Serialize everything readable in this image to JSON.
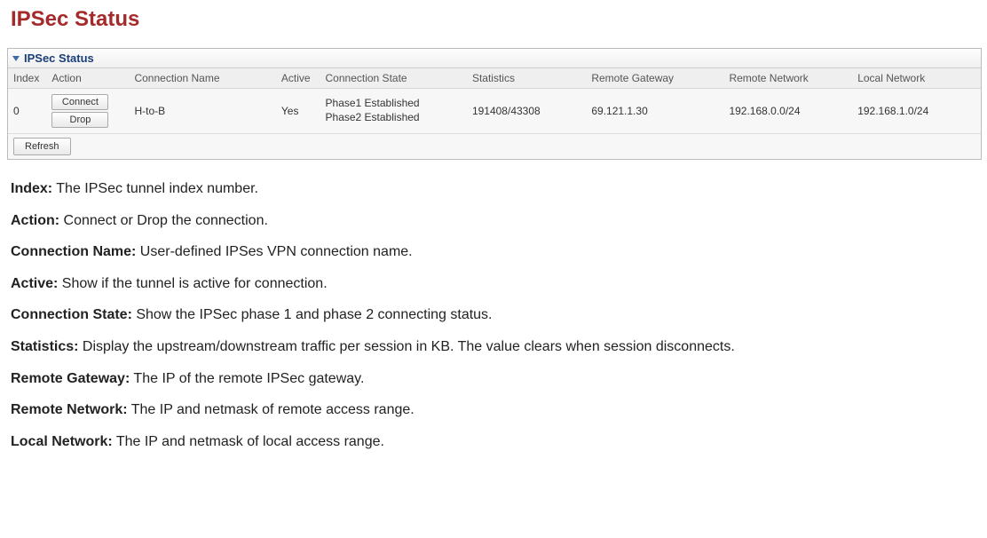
{
  "title": "IPSec Status",
  "panel": {
    "header": "IPSec Status",
    "columns": {
      "index": "Index",
      "action": "Action",
      "connectionName": "Connection Name",
      "active": "Active",
      "connectionState": "Connection State",
      "statistics": "Statistics",
      "remoteGateway": "Remote Gateway",
      "remoteNetwork": "Remote Network",
      "localNetwork": "Local Network"
    },
    "row": {
      "index": "0",
      "connectBtn": "Connect",
      "dropBtn": "Drop",
      "connectionName": "H-to-B",
      "active": "Yes",
      "stateLine1": "Phase1 Established",
      "stateLine2": "Phase2 Established",
      "statistics": "191408/43308",
      "remoteGateway": "69.121.1.30",
      "remoteNetwork": "192.168.0.0/24",
      "localNetwork": "192.168.1.0/24"
    },
    "refresh": "Refresh"
  },
  "definitions": [
    {
      "term": "Index:",
      "desc": " The IPSec tunnel index number."
    },
    {
      "term": "Action:",
      "desc": " Connect or Drop the connection."
    },
    {
      "term": "Connection Name:",
      "desc": " User-defined IPSes VPN connection name."
    },
    {
      "term": "Active:",
      "desc": " Show if the tunnel is active for connection."
    },
    {
      "term": "Connection State:",
      "desc": " Show the IPSec phase 1 and phase 2 connecting status."
    },
    {
      "term": "Statistics:",
      "desc": " Display the upstream/downstream traffic per session in KB. The value clears when session disconnects."
    },
    {
      "term": "Remote Gateway:",
      "desc": " The IP of the remote IPSec gateway."
    },
    {
      "term": "Remote Network:",
      "desc": " The IP and netmask of remote access range."
    },
    {
      "term": "Local Network:",
      "desc": " The IP and netmask of local access range."
    }
  ]
}
